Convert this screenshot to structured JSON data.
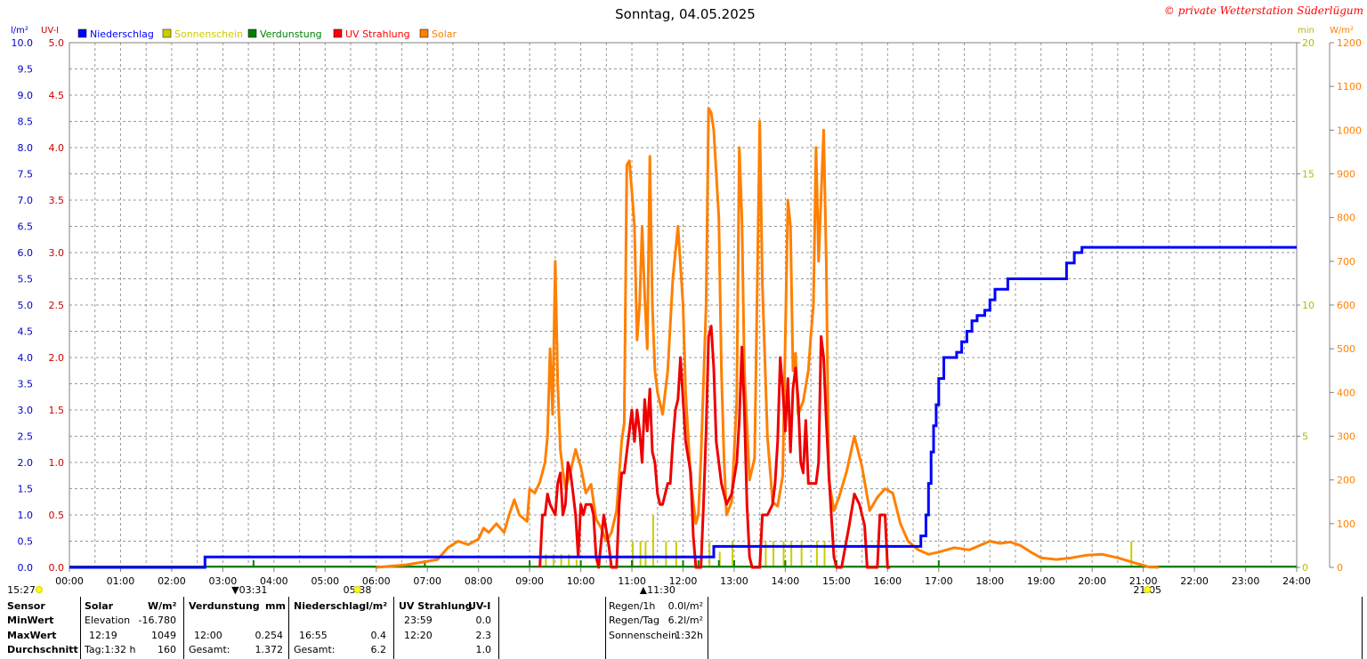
{
  "chart_data": {
    "type": "line",
    "title": "Sonntag, 04.05.2025",
    "credit": "© private Wetterstation Süderlügum",
    "left_axis1": {
      "unit": "l/m²",
      "range": [
        0,
        10
      ],
      "ticks": [
        "0.0",
        "0.5",
        "1.0",
        "1.5",
        "2.0",
        "2.5",
        "3.0",
        "3.5",
        "4.0",
        "4.5",
        "5.0",
        "5.5",
        "6.0",
        "6.5",
        "7.0",
        "7.5",
        "8.0",
        "8.5",
        "9.0",
        "9.5",
        "10.0"
      ]
    },
    "left_axis2": {
      "unit": "UV-I",
      "range": [
        0,
        5
      ],
      "ticks": [
        "0.0",
        "0.5",
        "1.0",
        "1.5",
        "2.0",
        "2.5",
        "3.0",
        "3.5",
        "4.0",
        "4.5",
        "5.0"
      ]
    },
    "right_axis1": {
      "unit": "min",
      "range": [
        0,
        20
      ],
      "ticks": [
        "0",
        "5",
        "10",
        "15",
        "20"
      ]
    },
    "right_axis2": {
      "unit": "W/m²",
      "range": [
        0,
        1200
      ],
      "ticks": [
        "0",
        "100",
        "200",
        "300",
        "400",
        "500",
        "600",
        "700",
        "800",
        "900",
        "1000",
        "1100",
        "1200"
      ]
    },
    "x_ticks": [
      "00:00",
      "01:00",
      "02:00",
      "03:00",
      "04:00",
      "05:00",
      "06:00",
      "07:00",
      "08:00",
      "09:00",
      "10:00",
      "11:00",
      "12:00",
      "13:00",
      "14:00",
      "15:00",
      "16:00",
      "17:00",
      "18:00",
      "19:00",
      "20:00",
      "21:00",
      "22:00",
      "23:00",
      "24:00"
    ],
    "legend": [
      {
        "name": "Niederschlag",
        "color": "#0000ff"
      },
      {
        "name": "Sonnenschein",
        "color": "#cccc00"
      },
      {
        "name": "Verdunstung",
        "color": "#008000"
      },
      {
        "name": "UV Strahlung",
        "color": "#ff0000"
      },
      {
        "name": "Solar",
        "color": "#ff8000"
      }
    ],
    "grid": true,
    "series": {
      "niederschlag": [
        [
          0,
          0
        ],
        [
          2.6,
          0
        ],
        [
          2.65,
          0.2
        ],
        [
          12.55,
          0.2
        ],
        [
          12.6,
          0.4
        ],
        [
          16.6,
          0.4
        ],
        [
          16.65,
          0.6
        ],
        [
          16.75,
          1.0
        ],
        [
          16.8,
          1.6
        ],
        [
          16.85,
          2.2
        ],
        [
          16.9,
          2.7
        ],
        [
          16.95,
          3.1
        ],
        [
          17.0,
          3.6
        ],
        [
          17.1,
          4.0
        ],
        [
          17.3,
          4.0
        ],
        [
          17.35,
          4.1
        ],
        [
          17.45,
          4.3
        ],
        [
          17.55,
          4.5
        ],
        [
          17.65,
          4.7
        ],
        [
          17.75,
          4.8
        ],
        [
          17.9,
          4.9
        ],
        [
          18.0,
          5.1
        ],
        [
          18.1,
          5.3
        ],
        [
          18.3,
          5.3
        ],
        [
          18.35,
          5.5
        ],
        [
          19.4,
          5.5
        ],
        [
          19.5,
          5.8
        ],
        [
          19.65,
          6.0
        ],
        [
          19.75,
          6.0
        ],
        [
          19.8,
          6.1
        ],
        [
          24,
          6.1
        ]
      ],
      "sonnenschein": [
        [
          9.3,
          0.5,
          1
        ],
        [
          9.45,
          0.5,
          1
        ],
        [
          9.6,
          0.5,
          1
        ],
        [
          9.75,
          0.5,
          1
        ],
        [
          9.9,
          0.3,
          1
        ],
        [
          11.0,
          1.0,
          1
        ],
        [
          11.15,
          1.0,
          1
        ],
        [
          11.25,
          1.0,
          1
        ],
        [
          11.4,
          2.0,
          1
        ],
        [
          11.65,
          1.0,
          1
        ],
        [
          11.85,
          1.0,
          1
        ],
        [
          12.5,
          1.0,
          1
        ],
        [
          12.7,
          0.6,
          1
        ],
        [
          12.95,
          1.0,
          1
        ],
        [
          13.6,
          1.0,
          1
        ],
        [
          13.75,
          1.0,
          1
        ],
        [
          13.95,
          1.0,
          1
        ],
        [
          14.1,
          1.0,
          1
        ],
        [
          14.3,
          1.0,
          1
        ],
        [
          14.6,
          1.0,
          1
        ],
        [
          14.75,
          1.0,
          1
        ],
        [
          20.75,
          1.0,
          1
        ]
      ],
      "verdunstung_ticks": [
        3.6,
        6.95,
        9.0,
        10.0,
        11.0,
        12.0,
        12.3,
        12.7,
        13.0,
        14.0,
        15.0,
        16.0,
        17.0
      ],
      "uv": [
        [
          9.2,
          0
        ],
        [
          9.25,
          0.5
        ],
        [
          9.3,
          0.5
        ],
        [
          9.35,
          0.7
        ],
        [
          9.4,
          0.6
        ],
        [
          9.5,
          0.5
        ],
        [
          9.55,
          0.8
        ],
        [
          9.6,
          0.9
        ],
        [
          9.65,
          0.5
        ],
        [
          9.7,
          0.6
        ],
        [
          9.75,
          1.0
        ],
        [
          9.8,
          0.9
        ],
        [
          9.85,
          0.7
        ],
        [
          9.9,
          0.5
        ],
        [
          9.95,
          0.1
        ],
        [
          10.0,
          0.6
        ],
        [
          10.05,
          0.5
        ],
        [
          10.1,
          0.6
        ],
        [
          10.15,
          0.6
        ],
        [
          10.2,
          0.6
        ],
        [
          10.25,
          0.5
        ],
        [
          10.3,
          0.1
        ],
        [
          10.35,
          0
        ],
        [
          10.45,
          0.5
        ],
        [
          10.55,
          0.2
        ],
        [
          10.6,
          0
        ],
        [
          10.7,
          0
        ],
        [
          10.75,
          0.6
        ],
        [
          10.8,
          0.9
        ],
        [
          10.85,
          0.9
        ],
        [
          10.9,
          1.1
        ],
        [
          10.95,
          1.3
        ],
        [
          11.0,
          1.5
        ],
        [
          11.05,
          1.2
        ],
        [
          11.1,
          1.5
        ],
        [
          11.15,
          1.3
        ],
        [
          11.2,
          1.0
        ],
        [
          11.25,
          1.6
        ],
        [
          11.3,
          1.3
        ],
        [
          11.35,
          1.7
        ],
        [
          11.4,
          1.1
        ],
        [
          11.45,
          1.0
        ],
        [
          11.5,
          0.7
        ],
        [
          11.55,
          0.6
        ],
        [
          11.6,
          0.6
        ],
        [
          11.7,
          0.8
        ],
        [
          11.75,
          0.8
        ],
        [
          11.8,
          1.2
        ],
        [
          11.85,
          1.5
        ],
        [
          11.9,
          1.6
        ],
        [
          11.95,
          2.0
        ],
        [
          12.0,
          1.6
        ],
        [
          12.05,
          1.2
        ],
        [
          12.15,
          0.9
        ],
        [
          12.2,
          0.3
        ],
        [
          12.25,
          0
        ],
        [
          12.35,
          0
        ],
        [
          12.4,
          0.6
        ],
        [
          12.45,
          1.3
        ],
        [
          12.5,
          2.2
        ],
        [
          12.55,
          2.3
        ],
        [
          12.6,
          1.9
        ],
        [
          12.65,
          1.2
        ],
        [
          12.75,
          0.8
        ],
        [
          12.85,
          0.6
        ],
        [
          12.95,
          0.7
        ],
        [
          13.05,
          1.0
        ],
        [
          13.1,
          1.4
        ],
        [
          13.15,
          2.1
        ],
        [
          13.2,
          1.5
        ],
        [
          13.25,
          0.6
        ],
        [
          13.3,
          0.1
        ],
        [
          13.35,
          0
        ],
        [
          13.5,
          0
        ],
        [
          13.55,
          0.5
        ],
        [
          13.65,
          0.5
        ],
        [
          13.75,
          0.6
        ],
        [
          13.8,
          0.8
        ],
        [
          13.85,
          1.2
        ],
        [
          13.9,
          2.0
        ],
        [
          13.95,
          1.7
        ],
        [
          14.0,
          1.3
        ],
        [
          14.05,
          1.8
        ],
        [
          14.1,
          1.1
        ],
        [
          14.15,
          1.7
        ],
        [
          14.2,
          1.9
        ],
        [
          14.25,
          1.6
        ],
        [
          14.3,
          1.0
        ],
        [
          14.35,
          0.9
        ],
        [
          14.4,
          1.4
        ],
        [
          14.45,
          0.8
        ],
        [
          14.55,
          0.8
        ],
        [
          14.6,
          0.8
        ],
        [
          14.65,
          1.0
        ],
        [
          14.7,
          2.2
        ],
        [
          14.75,
          2.0
        ],
        [
          14.8,
          1.4
        ],
        [
          14.85,
          0.9
        ],
        [
          14.9,
          0.5
        ],
        [
          14.95,
          0.1
        ],
        [
          15.0,
          0
        ],
        [
          15.1,
          0
        ],
        [
          15.25,
          0.4
        ],
        [
          15.35,
          0.7
        ],
        [
          15.45,
          0.6
        ],
        [
          15.55,
          0.4
        ],
        [
          15.6,
          0
        ],
        [
          15.8,
          0
        ],
        [
          15.85,
          0.5
        ],
        [
          15.95,
          0.5
        ],
        [
          16.0,
          0
        ],
        [
          16.05,
          0
        ]
      ],
      "solar": [
        [
          6.0,
          0
        ],
        [
          6.3,
          3
        ],
        [
          6.6,
          6
        ],
        [
          6.9,
          12
        ],
        [
          7.2,
          18
        ],
        [
          7.4,
          45
        ],
        [
          7.6,
          60
        ],
        [
          7.8,
          52
        ],
        [
          8.0,
          65
        ],
        [
          8.1,
          90
        ],
        [
          8.2,
          80
        ],
        [
          8.35,
          100
        ],
        [
          8.5,
          80
        ],
        [
          8.6,
          120
        ],
        [
          8.7,
          155
        ],
        [
          8.8,
          120
        ],
        [
          8.95,
          105
        ],
        [
          9.0,
          180
        ],
        [
          9.1,
          170
        ],
        [
          9.2,
          195
        ],
        [
          9.3,
          240
        ],
        [
          9.35,
          300
        ],
        [
          9.4,
          500
        ],
        [
          9.45,
          350
        ],
        [
          9.5,
          700
        ],
        [
          9.55,
          420
        ],
        [
          9.6,
          270
        ],
        [
          9.65,
          220
        ],
        [
          9.7,
          180
        ],
        [
          9.8,
          220
        ],
        [
          9.9,
          270
        ],
        [
          10.0,
          230
        ],
        [
          10.1,
          170
        ],
        [
          10.2,
          190
        ],
        [
          10.3,
          110
        ],
        [
          10.4,
          90
        ],
        [
          10.5,
          60
        ],
        [
          10.6,
          80
        ],
        [
          10.7,
          130
        ],
        [
          10.8,
          290
        ],
        [
          10.85,
          330
        ],
        [
          10.9,
          920
        ],
        [
          10.95,
          930
        ],
        [
          11.0,
          860
        ],
        [
          11.05,
          780
        ],
        [
          11.1,
          520
        ],
        [
          11.15,
          600
        ],
        [
          11.2,
          780
        ],
        [
          11.25,
          620
        ],
        [
          11.3,
          500
        ],
        [
          11.35,
          940
        ],
        [
          11.4,
          600
        ],
        [
          11.45,
          450
        ],
        [
          11.5,
          400
        ],
        [
          11.6,
          350
        ],
        [
          11.7,
          450
        ],
        [
          11.8,
          660
        ],
        [
          11.9,
          780
        ],
        [
          12.0,
          600
        ],
        [
          12.05,
          400
        ],
        [
          12.15,
          200
        ],
        [
          12.25,
          100
        ],
        [
          12.3,
          120
        ],
        [
          12.35,
          250
        ],
        [
          12.45,
          600
        ],
        [
          12.5,
          1050
        ],
        [
          12.55,
          1040
        ],
        [
          12.6,
          1000
        ],
        [
          12.7,
          800
        ],
        [
          12.75,
          450
        ],
        [
          12.8,
          250
        ],
        [
          12.85,
          120
        ],
        [
          12.95,
          150
        ],
        [
          13.05,
          380
        ],
        [
          13.1,
          960
        ],
        [
          13.15,
          800
        ],
        [
          13.2,
          450
        ],
        [
          13.3,
          200
        ],
        [
          13.4,
          250
        ],
        [
          13.5,
          1020
        ],
        [
          13.55,
          650
        ],
        [
          13.65,
          300
        ],
        [
          13.75,
          150
        ],
        [
          13.85,
          140
        ],
        [
          13.95,
          210
        ],
        [
          14.05,
          840
        ],
        [
          14.1,
          780
        ],
        [
          14.15,
          450
        ],
        [
          14.2,
          490
        ],
        [
          14.25,
          350
        ],
        [
          14.35,
          380
        ],
        [
          14.45,
          450
        ],
        [
          14.5,
          530
        ],
        [
          14.55,
          600
        ],
        [
          14.6,
          960
        ],
        [
          14.65,
          700
        ],
        [
          14.75,
          1000
        ],
        [
          14.8,
          700
        ],
        [
          14.85,
          200
        ],
        [
          14.95,
          130
        ],
        [
          15.05,
          160
        ],
        [
          15.2,
          220
        ],
        [
          15.35,
          300
        ],
        [
          15.5,
          230
        ],
        [
          15.65,
          130
        ],
        [
          15.8,
          160
        ],
        [
          15.95,
          180
        ],
        [
          16.1,
          170
        ],
        [
          16.25,
          100
        ],
        [
          16.4,
          60
        ],
        [
          16.6,
          40
        ],
        [
          16.8,
          30
        ],
        [
          17.0,
          35
        ],
        [
          17.3,
          45
        ],
        [
          17.6,
          40
        ],
        [
          17.8,
          50
        ],
        [
          18.0,
          60
        ],
        [
          18.2,
          55
        ],
        [
          18.4,
          58
        ],
        [
          18.6,
          50
        ],
        [
          18.8,
          35
        ],
        [
          19.0,
          22
        ],
        [
          19.3,
          18
        ],
        [
          19.6,
          22
        ],
        [
          19.9,
          28
        ],
        [
          20.2,
          30
        ],
        [
          20.5,
          22
        ],
        [
          20.7,
          15
        ],
        [
          20.9,
          8
        ],
        [
          21.0,
          5
        ],
        [
          21.1,
          1
        ],
        [
          21.3,
          0
        ]
      ]
    },
    "markers": [
      {
        "label": "15:27",
        "x": 0
      },
      {
        "label": "▼03:31",
        "x": 3.52
      },
      {
        "label": "05:38",
        "x": 5.63
      },
      {
        "label": "▲11:30",
        "x": 11.5
      },
      {
        "label": "21:05",
        "x": 21.08
      }
    ]
  },
  "table": {
    "sensor": {
      "h": "Sensor",
      "min": "MinWert",
      "max": "MaxWert",
      "avg": "Durchschnitt"
    },
    "solar": {
      "h": "Solar",
      "unit": "W/m²",
      "min_l": "Elevation",
      "min_v": "-16.780",
      "max_l": "12:19",
      "max_v": "1049",
      "avg_l": "Tag:1:32 h",
      "avg_v": "160"
    },
    "verd": {
      "h": "Verdunstung",
      "unit": "mm",
      "max_l": "12:00",
      "max_v": "0.254",
      "avg_l": "Gesamt:",
      "avg_v": "1.372"
    },
    "nied": {
      "h": "Niederschlag",
      "unit": "l/m²",
      "max_l": "16:55",
      "max_v": "0.4",
      "avg_l": "Gesamt:",
      "avg_v": "6.2"
    },
    "uv": {
      "h": "UV Strahlung",
      "unit": "UV-I",
      "min_l": "23:59",
      "min_v": "0.0",
      "max_l": "12:20",
      "max_v": "2.3",
      "avg_v": "1.0"
    },
    "extra": {
      "r1_l": "Regen/1h",
      "r1_v": "0.0l/m²",
      "r2_l": "Regen/Tag",
      "r2_v": "6.2l/m²",
      "r3_l": "Sonnenschein",
      "r3_v": "1:32h"
    }
  }
}
